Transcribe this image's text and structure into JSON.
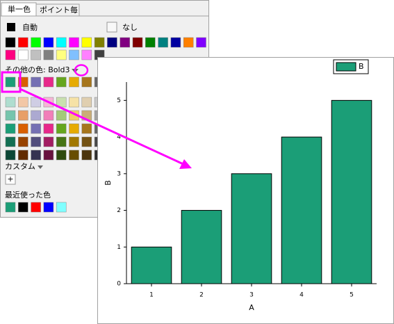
{
  "palette": {
    "tabs": [
      "単一色",
      "ポイント毎"
    ],
    "auto": "自動",
    "none": "なし",
    "other_colors": "その他の色: Bold3",
    "custom": "カスタム",
    "add": "+",
    "recent": "最近使った色"
  },
  "chart_data": {
    "type": "bar",
    "x_label": "A",
    "y_label": "B",
    "x": [
      1,
      2,
      3,
      4,
      5
    ],
    "xlim": [
      0.5,
      5.5
    ],
    "xticks": [
      1,
      2,
      3,
      4,
      5
    ],
    "series": [
      {
        "name": "B",
        "color": "#1b9e77",
        "values": [
          1,
          2,
          3,
          4,
          5
        ]
      }
    ],
    "ylim": [
      0,
      5.5
    ],
    "yticks": [
      0,
      1,
      2,
      3,
      4,
      5
    ],
    "legend": "upper right"
  }
}
